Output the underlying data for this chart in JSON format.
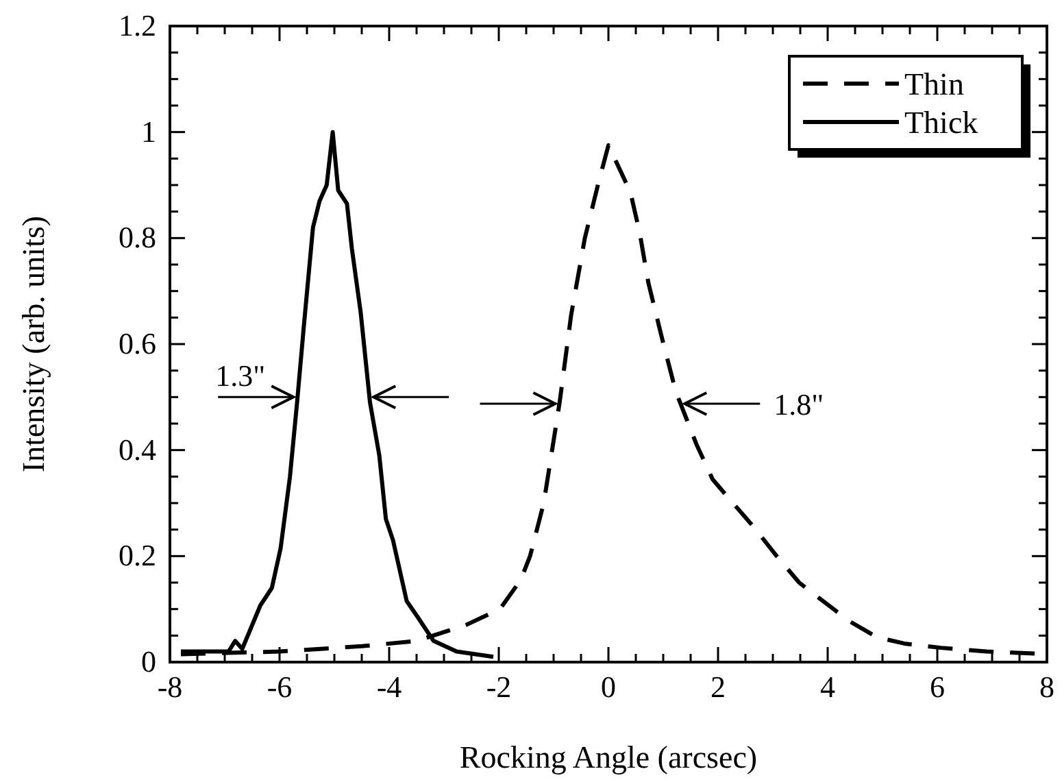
{
  "chart_data": {
    "type": "line",
    "xlabel": "Rocking Angle (arcsec)",
    "ylabel": "Intensity (arb. units)",
    "xlim": [
      -8,
      8
    ],
    "xticks": [
      -8,
      -6,
      -4,
      -2,
      0,
      2,
      4,
      6,
      8
    ],
    "ylim": [
      0,
      1.2
    ],
    "yticks": [
      0,
      0.2,
      0.4,
      0.6,
      0.8,
      1,
      1.2
    ],
    "grid": false,
    "legend": "top right",
    "marker": "none",
    "series": [
      {
        "name": "Thin",
        "color": "#000000",
        "line_style": "dashed",
        "x": [
          -7.8,
          -6,
          -4.5,
          -3.5,
          -2.6,
          -1.98,
          -1.6,
          -1.43,
          -1.18,
          -0.89,
          -0.68,
          -0.43,
          -0.18,
          0,
          0.4,
          0.57,
          0.73,
          0.98,
          1.23,
          1.61,
          1.9,
          2.23,
          2.65,
          3.07,
          3.48,
          3.98,
          4.4,
          4.9,
          5.4,
          6.07,
          6.9,
          7.82
        ],
        "values": [
          0.015,
          0.02,
          0.03,
          0.04,
          0.07,
          0.1,
          0.155,
          0.2,
          0.3,
          0.49,
          0.655,
          0.8,
          0.905,
          0.975,
          0.887,
          0.81,
          0.715,
          0.61,
          0.51,
          0.41,
          0.345,
          0.305,
          0.255,
          0.2,
          0.15,
          0.11,
          0.077,
          0.047,
          0.035,
          0.027,
          0.02,
          0.016
        ]
      },
      {
        "name": "Thick",
        "color": "#000000",
        "line_style": "solid",
        "x": [
          -7.8,
          -6.93,
          -6.81,
          -6.68,
          -6.35,
          -6.14,
          -5.98,
          -5.81,
          -5.68,
          -5.56,
          -5.39,
          -5.27,
          -5.14,
          -5.03,
          -4.93,
          -4.77,
          -4.68,
          -4.52,
          -4.35,
          -4.18,
          -4.06,
          -3.93,
          -3.68,
          -3.48,
          -3.19,
          -2.77,
          -2.1
        ],
        "values": [
          0.02,
          0.02,
          0.04,
          0.025,
          0.107,
          0.14,
          0.215,
          0.35,
          0.49,
          0.63,
          0.82,
          0.87,
          0.9,
          1,
          0.89,
          0.865,
          0.78,
          0.66,
          0.49,
          0.39,
          0.27,
          0.23,
          0.115,
          0.085,
          0.04,
          0.02,
          0.01
        ]
      }
    ],
    "annotations": [
      "1.3\"",
      "1.8\""
    ]
  }
}
